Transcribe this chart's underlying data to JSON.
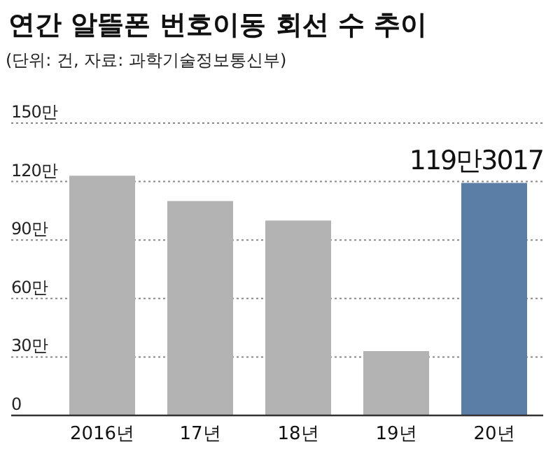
{
  "chart_data": {
    "type": "bar",
    "title": "연간 알뜰폰 번호이동 회선 수 추이",
    "subtitle": "(단위: 건, 자료: 과학기술정보통신부)",
    "categories": [
      "2016년",
      "17년",
      "18년",
      "19년",
      "20년"
    ],
    "values": [
      123,
      110,
      100,
      33,
      119.3017
    ],
    "colors": [
      "#b3b3b3",
      "#b3b3b3",
      "#b3b3b3",
      "#b3b3b3",
      "#5a7ea6"
    ],
    "value_labels": [
      null,
      null,
      null,
      null,
      "119만3017"
    ],
    "ylim": [
      0,
      150
    ],
    "yticks": [
      0,
      {
        "value": 30,
        "label": "30만"
      },
      {
        "value": 60,
        "label": "60만"
      },
      {
        "value": 90,
        "label": "90만"
      },
      {
        "value": 120,
        "label": "120만"
      },
      {
        "value": 150,
        "label": "150만"
      }
    ],
    "grid": "y"
  }
}
